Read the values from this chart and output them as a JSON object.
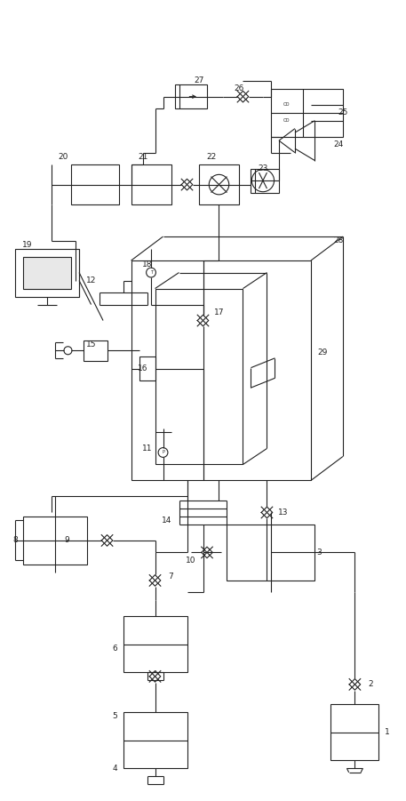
{
  "bg_color": "#ffffff",
  "line_color": "#222222",
  "label_color": "#222222",
  "figsize": [
    4.57,
    9.01
  ],
  "dpi": 100,
  "labels": [
    [
      96,
      17,
      "1"
    ],
    [
      92,
      29,
      "2"
    ],
    [
      79,
      62,
      "3"
    ],
    [
      28,
      8,
      "4"
    ],
    [
      28,
      21,
      "5"
    ],
    [
      28,
      38,
      "6"
    ],
    [
      42,
      56,
      "7"
    ],
    [
      3,
      65,
      "8"
    ],
    [
      16,
      65,
      "9"
    ],
    [
      47,
      60,
      "10"
    ],
    [
      36,
      88,
      "11"
    ],
    [
      22,
      130,
      "12"
    ],
    [
      70,
      72,
      "13"
    ],
    [
      41,
      70,
      "14"
    ],
    [
      22,
      114,
      "15"
    ],
    [
      35,
      108,
      "16"
    ],
    [
      54,
      122,
      "17"
    ],
    [
      36,
      134,
      "18"
    ],
    [
      6,
      139,
      "19"
    ],
    [
      15,
      161,
      "20"
    ],
    [
      35,
      161,
      "21"
    ],
    [
      52,
      161,
      "22"
    ],
    [
      65,
      158,
      "23"
    ],
    [
      84,
      164,
      "24"
    ],
    [
      85,
      172,
      "25"
    ],
    [
      59,
      178,
      "26"
    ],
    [
      49,
      180,
      "27"
    ],
    [
      84,
      140,
      "28"
    ],
    [
      80,
      112,
      "29"
    ]
  ]
}
